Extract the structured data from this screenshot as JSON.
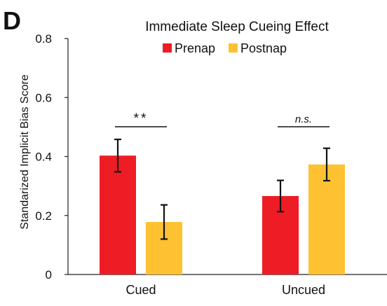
{
  "panel_label": "D",
  "chart_data": {
    "type": "bar",
    "title": "Immediate Sleep Cueing Effect",
    "xlabel": "",
    "ylabel": "Standarized Implicit Bias Score",
    "categories": [
      "Cued",
      "Uncued"
    ],
    "ylim": [
      0,
      0.8
    ],
    "yticks": [
      0,
      0.2,
      0.4,
      0.6,
      0.8
    ],
    "ytick_labels": [
      "0",
      "0.2",
      "0.4",
      "0.6",
      "0.8"
    ],
    "grid": false,
    "legend_position": "top",
    "series": [
      {
        "name": "Prenap",
        "color": "#ee1c24",
        "values": [
          0.403,
          0.266
        ],
        "error": [
          0.055,
          0.053
        ]
      },
      {
        "name": "Postnap",
        "color": "#fdc132",
        "values": [
          0.178,
          0.373
        ],
        "error": [
          0.058,
          0.055
        ]
      }
    ],
    "annotations": [
      {
        "category_index": 0,
        "text": "**",
        "italic": false
      },
      {
        "category_index": 1,
        "text": "n.s.",
        "italic": true
      }
    ]
  }
}
